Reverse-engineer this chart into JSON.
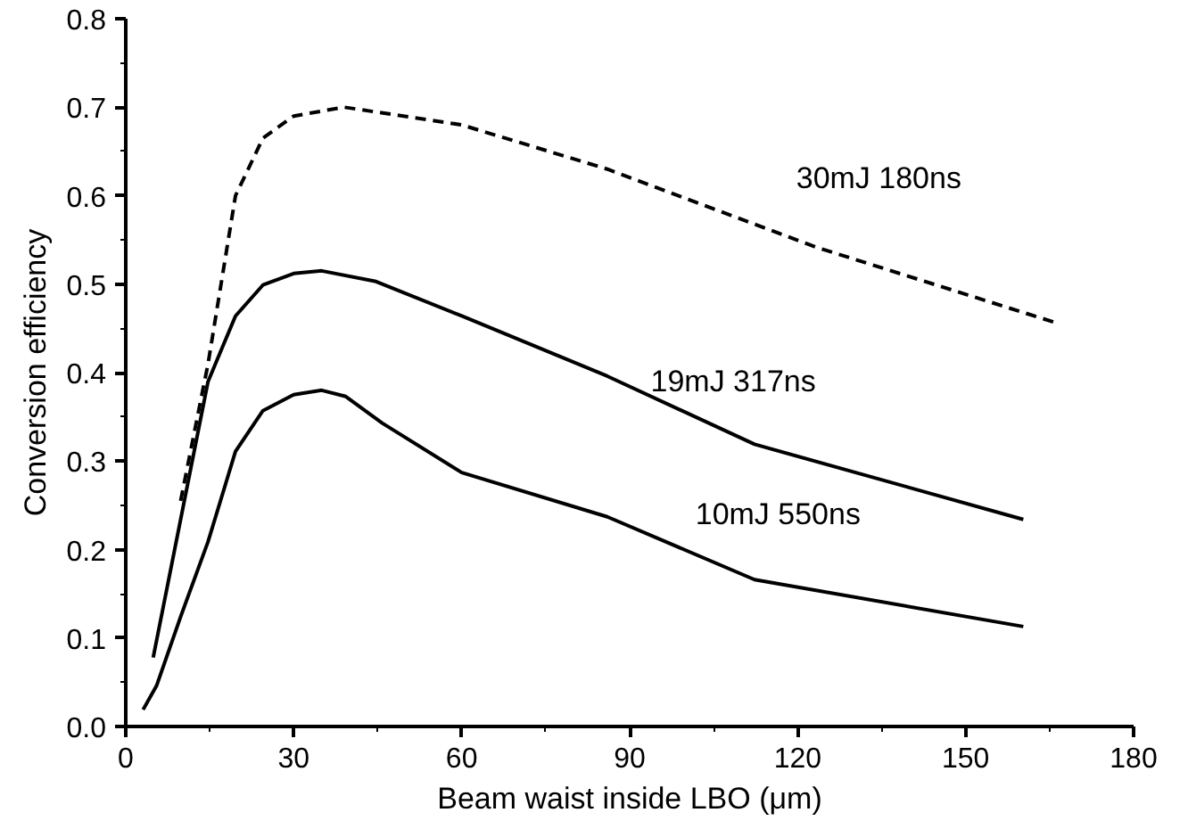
{
  "chart_data": {
    "type": "line",
    "xlabel": "Beam waist inside LBO (μm)",
    "ylabel": "Conversion efficiency",
    "xlim": [
      0,
      180
    ],
    "ylim": [
      0,
      0.8
    ],
    "xticks": [
      0,
      30,
      60,
      90,
      120,
      150,
      180
    ],
    "yticks": [
      {
        "value": 0,
        "label": "0.0"
      },
      0.1,
      0.2,
      0.3,
      0.4,
      0.5,
      0.6,
      0.7,
      0.8
    ],
    "grid": false,
    "marker": "none",
    "series": [
      {
        "name": "30mJ   180ns",
        "color": "#000000",
        "line_style": "dashed",
        "x": [
          9.8,
          14.7,
          19.6,
          24.5,
          30,
          39,
          60,
          86,
          123.2,
          165.8
        ],
        "values": [
          0.255,
          0.41,
          0.6,
          0.665,
          0.69,
          0.7,
          0.68,
          0.63,
          0.542,
          0.457
        ]
      },
      {
        "name": "19mJ   317ns",
        "color": "#000000",
        "line_style": "solid",
        "x": [
          4.9,
          14.7,
          19.6,
          24.5,
          30,
          35,
          44.7,
          60,
          86,
          112.3,
          160.3
        ],
        "values": [
          0.078,
          0.39,
          0.464,
          0.499,
          0.512,
          0.515,
          0.503,
          0.464,
          0.396,
          0.319,
          0.234
        ]
      },
      {
        "name": "10mJ   550ns",
        "color": "#000000",
        "line_style": "solid",
        "x": [
          3.1,
          5.5,
          9.8,
          14.7,
          19.6,
          24.5,
          30,
          35,
          39.3,
          45.8,
          60,
          86,
          112.3,
          160.3
        ],
        "values": [
          0.019,
          0.046,
          0.124,
          0.209,
          0.311,
          0.357,
          0.375,
          0.38,
          0.373,
          0.343,
          0.287,
          0.237,
          0.166,
          0.113
        ]
      }
    ]
  }
}
